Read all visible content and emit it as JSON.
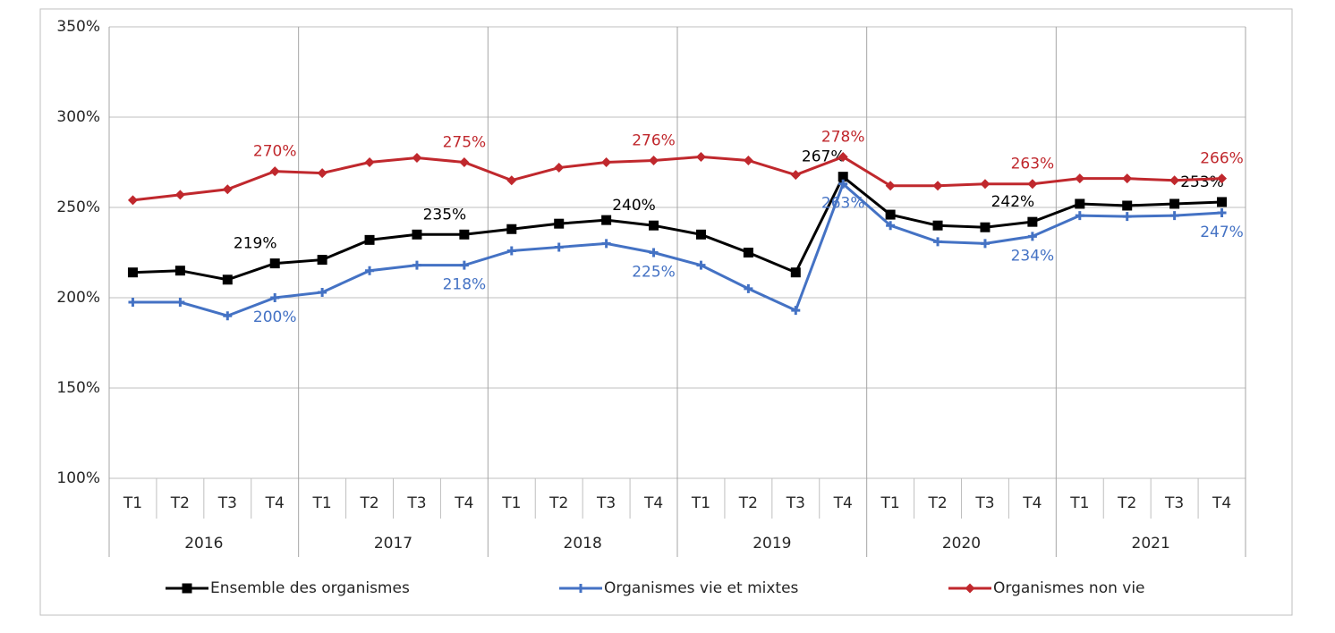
{
  "chart_data": {
    "type": "line",
    "categories": [
      "T1",
      "T2",
      "T3",
      "T4",
      "T1",
      "T2",
      "T3",
      "T4",
      "T1",
      "T2",
      "T3",
      "T4",
      "T1",
      "T2",
      "T3",
      "T4",
      "T1",
      "T2",
      "T3",
      "T4",
      "T1",
      "T2",
      "T3",
      "T4"
    ],
    "x_groups": [
      "2016",
      "2017",
      "2018",
      "2019",
      "2020",
      "2021"
    ],
    "ylim": [
      100,
      350
    ],
    "yticks": [
      {
        "value": 100,
        "label": "100%"
      },
      {
        "value": 150,
        "label": "150%"
      },
      {
        "value": 200,
        "label": "200%"
      },
      {
        "value": 250,
        "label": "250%"
      },
      {
        "value": 300,
        "label": "300%"
      },
      {
        "value": 350,
        "label": "350%"
      }
    ],
    "grid": true,
    "legend": "bottom",
    "series": [
      {
        "name": "Ensemble des organismes",
        "color": "#000000",
        "marker": "square",
        "values": [
          214,
          215,
          210,
          219,
          221,
          232,
          235,
          235,
          238,
          241,
          243,
          240,
          235,
          225,
          214,
          267,
          246,
          240,
          239,
          242,
          252,
          251,
          252,
          253
        ],
        "value_labels": [
          null,
          null,
          null,
          "219%",
          null,
          null,
          null,
          "235%",
          null,
          null,
          null,
          "240%",
          null,
          null,
          null,
          "267%",
          null,
          null,
          null,
          "242%",
          null,
          null,
          null,
          "253%"
        ]
      },
      {
        "name": "Organismes vie et mixtes",
        "color": "#4472c4",
        "marker": "plus",
        "values": [
          197.5,
          197.5,
          190,
          200,
          203,
          215,
          218,
          218,
          226,
          228,
          230,
          225,
          218,
          205,
          193,
          263,
          240,
          231,
          230,
          234,
          245.5,
          245,
          245.5,
          247
        ],
        "value_labels": [
          null,
          null,
          null,
          "200%",
          null,
          null,
          null,
          "218%",
          null,
          null,
          null,
          "225%",
          null,
          null,
          null,
          "263%",
          null,
          null,
          null,
          "234%",
          null,
          null,
          null,
          "247%"
        ]
      },
      {
        "name": "Organismes non vie",
        "color": "#c0282d",
        "marker": "diamond",
        "values": [
          254,
          257,
          260,
          270,
          269,
          275,
          277.5,
          275,
          265,
          272,
          275,
          276,
          278,
          276,
          268,
          278,
          262,
          262,
          263,
          263,
          266,
          266,
          265,
          266
        ],
        "value_labels": [
          null,
          null,
          null,
          "270%",
          null,
          null,
          null,
          "275%",
          null,
          null,
          null,
          "276%",
          null,
          null,
          null,
          "278%",
          null,
          null,
          null,
          "263%",
          null,
          null,
          null,
          "266%"
        ]
      }
    ]
  }
}
